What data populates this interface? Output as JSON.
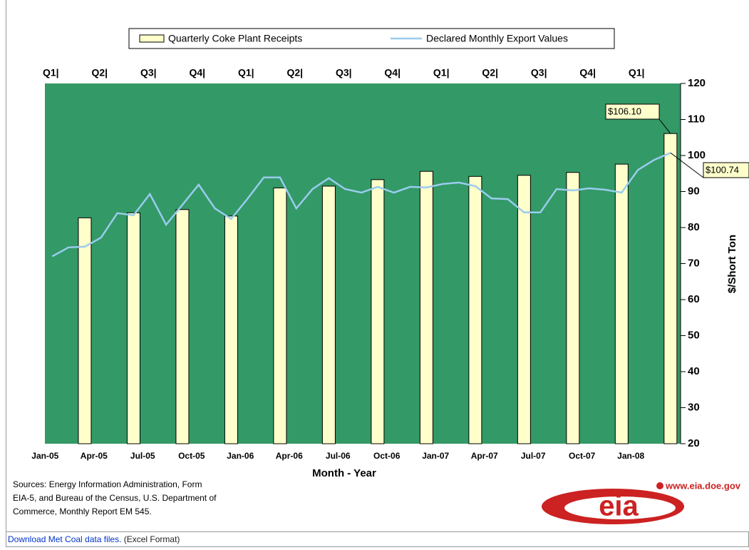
{
  "chart_data": {
    "type": "bar-line",
    "legend": "top",
    "categories": [
      "Jan-05",
      null,
      null,
      "Apr-05",
      null,
      null,
      "Jul-05",
      null,
      null,
      "Oct-05",
      null,
      null,
      "Jan-06",
      null,
      null,
      "Apr-06",
      null,
      null,
      "Jul-06",
      null,
      null,
      "Oct-06",
      null,
      null,
      "Jan-07",
      null,
      null,
      "Apr-07",
      null,
      null,
      "Jul-07",
      null,
      null,
      "Oct-07",
      null,
      null,
      "Jan-08",
      null,
      null
    ],
    "quarter_labels": [
      "Q1|",
      "Q2|",
      "Q3|",
      "Q4|",
      "Q1|",
      "Q2|",
      "Q3|",
      "Q4|",
      "Q1|",
      "Q2|",
      "Q3|",
      "Q4|",
      "Q1|"
    ],
    "series": [
      {
        "name": "Quarterly Coke Plant Receipts",
        "type": "bar",
        "color": "#ffffcc",
        "values": [
          null,
          null,
          82.7,
          null,
          null,
          84.1,
          null,
          null,
          85.0,
          null,
          null,
          83.2,
          null,
          null,
          91.0,
          null,
          null,
          91.5,
          null,
          null,
          93.3,
          null,
          null,
          95.6,
          null,
          null,
          94.2,
          null,
          null,
          94.5,
          null,
          null,
          95.3,
          null,
          null,
          97.6,
          null,
          null,
          106.1
        ],
        "value_labels": [
          null,
          null,
          null,
          null,
          null,
          null,
          null,
          null,
          null,
          null,
          null,
          null,
          null,
          null,
          null,
          null,
          null,
          null,
          null,
          null,
          null,
          null,
          null,
          null,
          null,
          null,
          null,
          null,
          null,
          null,
          null,
          null,
          null,
          null,
          null,
          null,
          null,
          null,
          "$106.10"
        ]
      },
      {
        "name": "Declared Monthly Export Values",
        "type": "line",
        "color": "#99ccee",
        "values": [
          72,
          74.5,
          74.7,
          77.2,
          84,
          83.4,
          89.3,
          80.8,
          86.3,
          91.9,
          85.3,
          82.4,
          88,
          93.9,
          93.9,
          85.3,
          90.7,
          93.7,
          90.7,
          89.7,
          91.3,
          89.7,
          91.3,
          91.1,
          92.1,
          92.5,
          91.5,
          88.1,
          87.9,
          84.2,
          84.2,
          90.7,
          90.3,
          90.9,
          90.5,
          89.7,
          96,
          98.8,
          100.74
        ],
        "value_labels": [
          null,
          null,
          null,
          null,
          null,
          null,
          null,
          null,
          null,
          null,
          null,
          null,
          null,
          null,
          null,
          null,
          null,
          null,
          null,
          null,
          null,
          null,
          null,
          null,
          null,
          null,
          null,
          null,
          null,
          null,
          null,
          null,
          null,
          null,
          null,
          null,
          null,
          null,
          "$100.74"
        ]
      }
    ],
    "ylim": [
      20,
      120
    ],
    "yticks": [
      20,
      30,
      40,
      50,
      60,
      70,
      80,
      90,
      100,
      110,
      120
    ],
    "y_axis_label": "$/Short Ton",
    "x_axis_label": "Month - Year",
    "plot_background": "#339966"
  },
  "sources": [
    "Sources:  Energy Information Administration,  Form",
    "EIA-5, and Bureau of the Census, U.S. Department of",
    "Commerce, Monthly Report EM 545."
  ],
  "logo": {
    "url": "www.eia.doe.gov",
    "text": "eia"
  },
  "footer": {
    "link": "Download Met Coal data files.",
    "note": " (Excel Format)"
  }
}
